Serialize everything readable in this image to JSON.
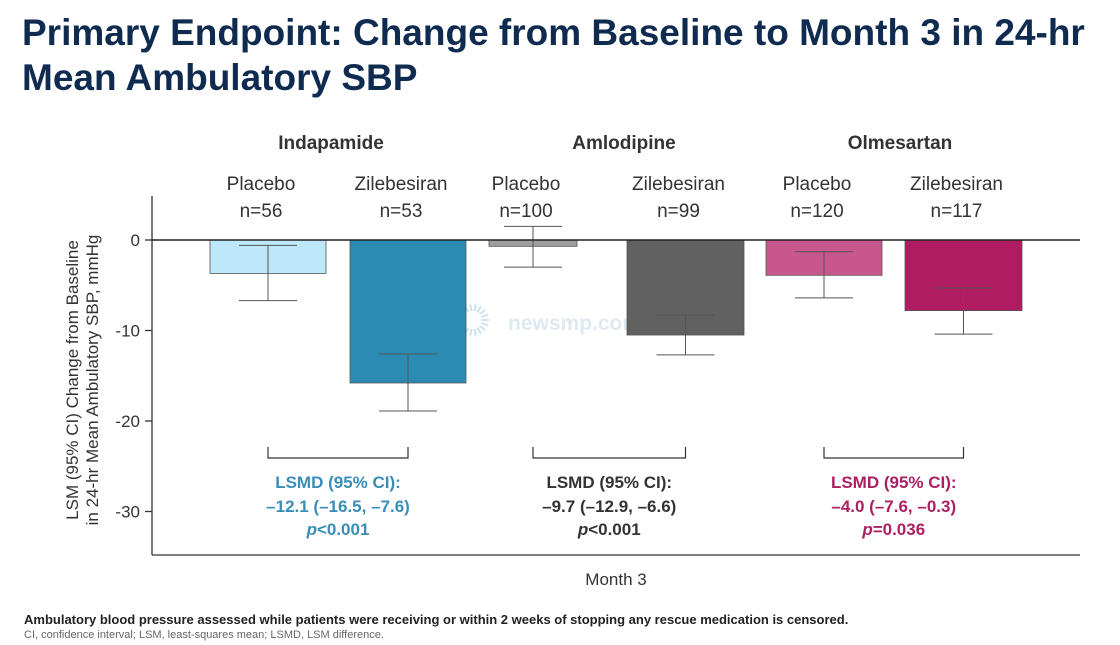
{
  "title": "Primary Endpoint: Change from Baseline to Month 3 in 24-hr Mean Ambulatory SBP",
  "watermark": "newsmp.com",
  "footnote": {
    "main": "Ambulatory blood pressure assessed while patients were receiving or within 2 weeks of stopping any rescue medication is censored.",
    "abbreviations": "CI, confidence interval; LSM, least-squares mean; LSMD, LSM difference."
  },
  "chart_data": {
    "type": "bar",
    "ylabel_line1": "LSM (95% CI) Change from Baseline",
    "ylabel_line2": "in 24-hr Mean Ambulatory SBP, mmHg",
    "xlabel": "Month 3",
    "ylim": [
      -35,
      5
    ],
    "yticks": [
      0,
      -10,
      -20,
      -30
    ],
    "ytick_labels": [
      "0",
      "-10",
      "-20",
      "-30"
    ],
    "groups": [
      {
        "name": "Indapamide",
        "color_placebo": "#bde8fb",
        "color_treatment": "#2c8bb3",
        "lsmd_color": "#3a8db8",
        "bars": [
          {
            "arm": "Placebo",
            "n": "n=56",
            "value": -3.7,
            "ci": [
              -6.7,
              -0.6
            ]
          },
          {
            "arm": "Zilebesiran",
            "n": "n=53",
            "value": -15.8,
            "ci": [
              -18.9,
              -12.6
            ]
          }
        ],
        "lsmd_label": "LSMD (95% CI):",
        "lsmd_value": "–12.1 (–16.5, –7.6)",
        "p_symbol": "p",
        "p_value": "<0.001"
      },
      {
        "name": "Amlodipine",
        "color_placebo": "#9e9e9e",
        "color_treatment": "#616161",
        "lsmd_color": "#333333",
        "bars": [
          {
            "arm": "Placebo",
            "n": "n=100",
            "value": -0.7,
            "ci": [
              -3.0,
              1.5
            ]
          },
          {
            "arm": "Zilebesiran",
            "n": "n=99",
            "value": -10.5,
            "ci": [
              -12.7,
              -8.3
            ]
          }
        ],
        "lsmd_label": "LSMD (95% CI):",
        "lsmd_value": "–9.7 (–12.9, –6.6)",
        "p_symbol": "p",
        "p_value": "<0.001"
      },
      {
        "name": "Olmesartan",
        "color_placebo": "#c8578d",
        "color_treatment": "#b01c62",
        "lsmd_color": "#ad1f63",
        "bars": [
          {
            "arm": "Placebo",
            "n": "n=120",
            "value": -3.9,
            "ci": [
              -6.4,
              -1.3
            ]
          },
          {
            "arm": "Zilebesiran",
            "n": "n=117",
            "value": -7.8,
            "ci": [
              -10.4,
              -5.3
            ]
          }
        ],
        "lsmd_label": "LSMD (95% CI):",
        "lsmd_value": "–4.0 (–7.6, –0.3)",
        "p_symbol": "p",
        "p_value": "=0.036"
      }
    ]
  }
}
